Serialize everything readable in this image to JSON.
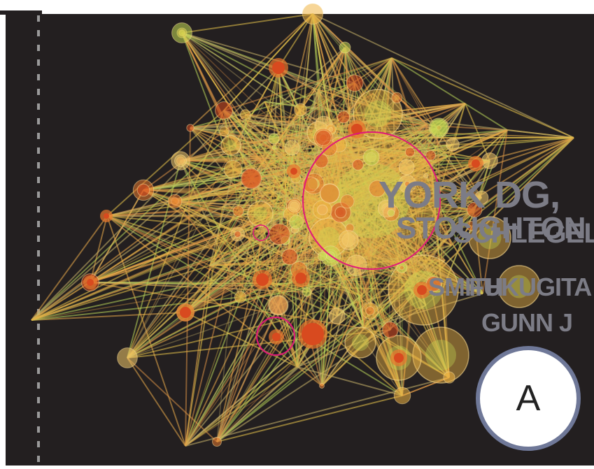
{
  "figure": {
    "background": "#231f20",
    "edge_colors": [
      "#e8c24a",
      "#e9a94b",
      "#d98f45",
      "#b9d45a",
      "#c8b36a"
    ],
    "node_colors": [
      "#f0b544",
      "#e8782e",
      "#d84a1f",
      "#c7dc55",
      "#f2c86a"
    ]
  },
  "labels": {
    "york": "YORK DG,",
    "stoughton": "STOUGHTON",
    "schlegel": "SCHLEGEL",
    "smith": "SMITH",
    "fukugita": "FUKUGITA",
    "gunn": "GUNN J"
  },
  "badge": {
    "letter": "A"
  }
}
